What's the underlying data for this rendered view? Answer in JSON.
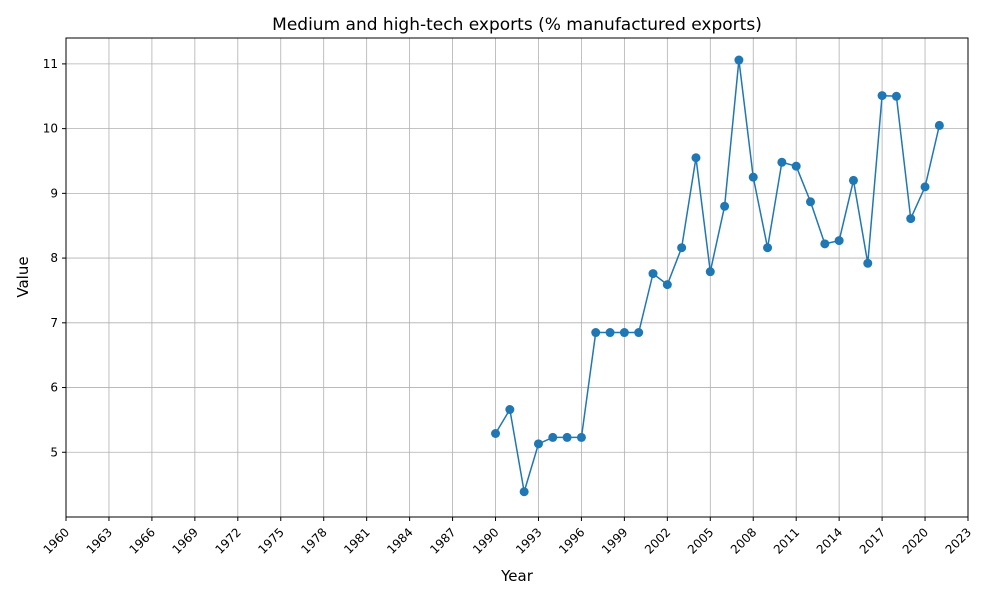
{
  "chart_data": {
    "type": "line",
    "title": "Medium and high-tech exports (% manufactured exports)",
    "xlabel": "Year",
    "ylabel": "Value",
    "xlim": [
      1960,
      2023
    ],
    "ylim": [
      4.0,
      11.4
    ],
    "x_ticks": [
      1960,
      1963,
      1966,
      1969,
      1972,
      1975,
      1978,
      1981,
      1984,
      1987,
      1990,
      1993,
      1996,
      1999,
      2002,
      2005,
      2008,
      2011,
      2014,
      2017,
      2020,
      2023
    ],
    "y_ticks": [
      5,
      6,
      7,
      8,
      9,
      10,
      11
    ],
    "grid": true,
    "color": "#1f77b4",
    "marker": "circle",
    "x": [
      1990,
      1991,
      1992,
      1993,
      1994,
      1995,
      1996,
      1997,
      1998,
      1999,
      2000,
      2001,
      2002,
      2003,
      2004,
      2005,
      2006,
      2007,
      2008,
      2009,
      2010,
      2011,
      2012,
      2013,
      2014,
      2015,
      2016,
      2017,
      2018,
      2019,
      2020,
      2021
    ],
    "values": [
      5.29,
      5.66,
      4.39,
      5.13,
      5.23,
      5.23,
      5.23,
      6.85,
      6.85,
      6.85,
      6.85,
      7.76,
      7.59,
      8.16,
      9.55,
      7.79,
      8.8,
      11.06,
      9.25,
      8.16,
      9.48,
      9.42,
      8.87,
      8.22,
      8.27,
      9.2,
      7.92,
      10.51,
      10.5,
      8.61,
      9.1,
      10.05
    ]
  }
}
